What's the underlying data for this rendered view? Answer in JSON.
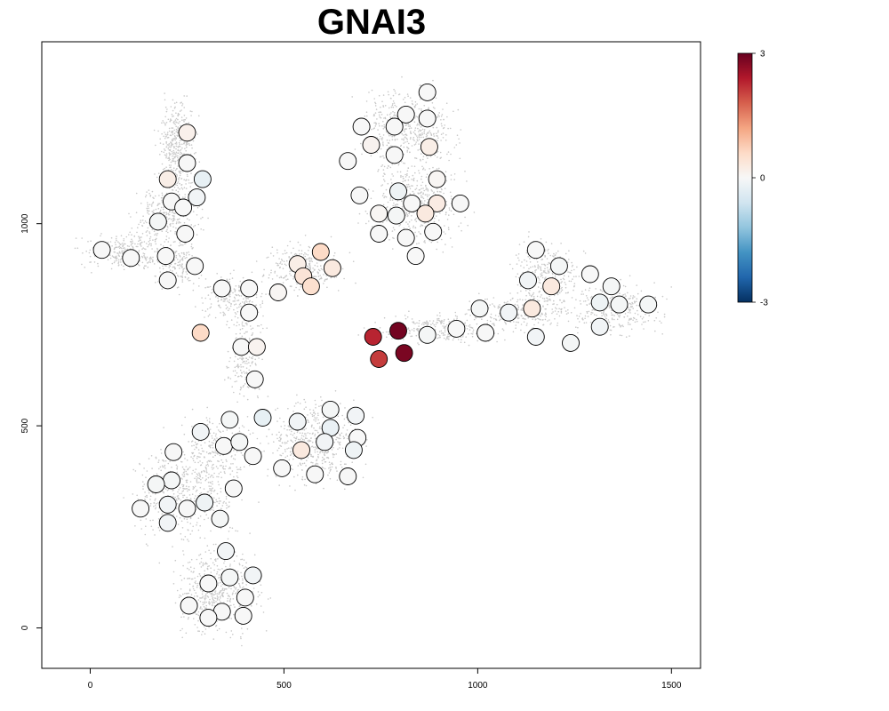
{
  "chart_data": {
    "type": "scatter",
    "title": "GNAI3",
    "xlabel": "",
    "ylabel": "",
    "xlim": [
      -125,
      1575
    ],
    "ylim": [
      -100,
      1450
    ],
    "x_ticks": [
      0,
      500,
      1000,
      1500
    ],
    "y_ticks": [
      0,
      500,
      1000
    ],
    "grid": false,
    "legend": "colorbar, top-right",
    "colorbar": {
      "min": -3,
      "max": 3,
      "ticks": [
        3,
        0,
        -3
      ],
      "colors": [
        "#053061",
        "#2166ac",
        "#4393c3",
        "#92c5de",
        "#d1e5f0",
        "#f7f7f7",
        "#fddbc7",
        "#f4a582",
        "#d6604d",
        "#b2182b",
        "#67001f"
      ]
    },
    "background_clusters": [
      {
        "cx": 225,
        "cy": 1180,
        "rx": 45,
        "ry": 110,
        "n": 420
      },
      {
        "cx": 200,
        "cy": 1020,
        "rx": 80,
        "ry": 70,
        "n": 300
      },
      {
        "cx": 100,
        "cy": 930,
        "rx": 110,
        "ry": 40,
        "n": 280
      },
      {
        "cx": 220,
        "cy": 900,
        "rx": 60,
        "ry": 60,
        "n": 180
      },
      {
        "cx": 370,
        "cy": 820,
        "rx": 90,
        "ry": 55,
        "n": 200
      },
      {
        "cx": 400,
        "cy": 680,
        "rx": 45,
        "ry": 110,
        "n": 220
      },
      {
        "cx": 550,
        "cy": 890,
        "rx": 90,
        "ry": 60,
        "n": 280
      },
      {
        "cx": 820,
        "cy": 1240,
        "rx": 110,
        "ry": 90,
        "n": 500
      },
      {
        "cx": 840,
        "cy": 1050,
        "rx": 110,
        "ry": 100,
        "n": 500
      },
      {
        "cx": 580,
        "cy": 460,
        "rx": 110,
        "ry": 100,
        "n": 520
      },
      {
        "cx": 250,
        "cy": 340,
        "rx": 130,
        "ry": 110,
        "n": 560
      },
      {
        "cx": 330,
        "cy": 90,
        "rx": 100,
        "ry": 100,
        "n": 520
      },
      {
        "cx": 900,
        "cy": 740,
        "rx": 150,
        "ry": 35,
        "n": 260
      },
      {
        "cx": 1110,
        "cy": 780,
        "rx": 120,
        "ry": 40,
        "n": 240
      },
      {
        "cx": 1180,
        "cy": 870,
        "rx": 80,
        "ry": 80,
        "n": 300
      },
      {
        "cx": 1360,
        "cy": 790,
        "rx": 110,
        "ry": 60,
        "n": 320
      },
      {
        "cx": 330,
        "cy": 450,
        "rx": 80,
        "ry": 80,
        "n": 200
      }
    ],
    "points": [
      {
        "x": 250,
        "y": 1225,
        "v": 0.15
      },
      {
        "x": 250,
        "y": 1150,
        "v": 0
      },
      {
        "x": 200,
        "y": 1110,
        "v": 0.2
      },
      {
        "x": 290,
        "y": 1110,
        "v": -0.25
      },
      {
        "x": 210,
        "y": 1055,
        "v": 0
      },
      {
        "x": 240,
        "y": 1040,
        "v": 0
      },
      {
        "x": 275,
        "y": 1065,
        "v": -0.1
      },
      {
        "x": 175,
        "y": 1005,
        "v": -0.05
      },
      {
        "x": 245,
        "y": 975,
        "v": 0
      },
      {
        "x": 30,
        "y": 935,
        "v": 0
      },
      {
        "x": 105,
        "y": 915,
        "v": 0
      },
      {
        "x": 195,
        "y": 920,
        "v": 0
      },
      {
        "x": 270,
        "y": 895,
        "v": 0
      },
      {
        "x": 200,
        "y": 860,
        "v": 0
      },
      {
        "x": 340,
        "y": 840,
        "v": 0
      },
      {
        "x": 410,
        "y": 840,
        "v": 0
      },
      {
        "x": 485,
        "y": 830,
        "v": 0.05
      },
      {
        "x": 410,
        "y": 780,
        "v": 0
      },
      {
        "x": 285,
        "y": 730,
        "v": 0.6
      },
      {
        "x": 390,
        "y": 695,
        "v": 0
      },
      {
        "x": 430,
        "y": 695,
        "v": 0.1
      },
      {
        "x": 425,
        "y": 615,
        "v": 0
      },
      {
        "x": 595,
        "y": 930,
        "v": 0.6
      },
      {
        "x": 535,
        "y": 900,
        "v": 0.2
      },
      {
        "x": 550,
        "y": 870,
        "v": 0.4
      },
      {
        "x": 625,
        "y": 890,
        "v": 0.3
      },
      {
        "x": 570,
        "y": 845,
        "v": 0.5
      },
      {
        "x": 870,
        "y": 1325,
        "v": 0
      },
      {
        "x": 815,
        "y": 1270,
        "v": 0
      },
      {
        "x": 870,
        "y": 1260,
        "v": 0
      },
      {
        "x": 700,
        "y": 1240,
        "v": 0
      },
      {
        "x": 785,
        "y": 1240,
        "v": 0
      },
      {
        "x": 725,
        "y": 1195,
        "v": 0.1
      },
      {
        "x": 875,
        "y": 1190,
        "v": 0.2
      },
      {
        "x": 785,
        "y": 1170,
        "v": 0
      },
      {
        "x": 665,
        "y": 1155,
        "v": 0
      },
      {
        "x": 895,
        "y": 1110,
        "v": 0.05
      },
      {
        "x": 795,
        "y": 1080,
        "v": -0.15
      },
      {
        "x": 695,
        "y": 1070,
        "v": 0
      },
      {
        "x": 830,
        "y": 1050,
        "v": 0
      },
      {
        "x": 895,
        "y": 1050,
        "v": 0.25
      },
      {
        "x": 955,
        "y": 1050,
        "v": 0
      },
      {
        "x": 745,
        "y": 1025,
        "v": 0.05
      },
      {
        "x": 790,
        "y": 1020,
        "v": -0.05
      },
      {
        "x": 865,
        "y": 1025,
        "v": 0.3
      },
      {
        "x": 745,
        "y": 975,
        "v": 0
      },
      {
        "x": 815,
        "y": 965,
        "v": 0
      },
      {
        "x": 885,
        "y": 980,
        "v": 0
      },
      {
        "x": 840,
        "y": 920,
        "v": 0
      },
      {
        "x": 730,
        "y": 720,
        "v": 2.3
      },
      {
        "x": 795,
        "y": 735,
        "v": 2.9
      },
      {
        "x": 745,
        "y": 665,
        "v": 2.1
      },
      {
        "x": 810,
        "y": 680,
        "v": 2.85
      },
      {
        "x": 870,
        "y": 725,
        "v": -0.05
      },
      {
        "x": 945,
        "y": 740,
        "v": 0
      },
      {
        "x": 1005,
        "y": 790,
        "v": -0.05
      },
      {
        "x": 1020,
        "y": 730,
        "v": 0
      },
      {
        "x": 1080,
        "y": 780,
        "v": -0.1
      },
      {
        "x": 1140,
        "y": 790,
        "v": 0.3
      },
      {
        "x": 1150,
        "y": 935,
        "v": 0
      },
      {
        "x": 1210,
        "y": 895,
        "v": -0.05
      },
      {
        "x": 1130,
        "y": 860,
        "v": -0.1
      },
      {
        "x": 1190,
        "y": 845,
        "v": 0.3
      },
      {
        "x": 1150,
        "y": 720,
        "v": -0.1
      },
      {
        "x": 1240,
        "y": 705,
        "v": -0.05
      },
      {
        "x": 1290,
        "y": 875,
        "v": 0
      },
      {
        "x": 1345,
        "y": 845,
        "v": -0.05
      },
      {
        "x": 1315,
        "y": 805,
        "v": -0.15
      },
      {
        "x": 1365,
        "y": 800,
        "v": -0.05
      },
      {
        "x": 1440,
        "y": 800,
        "v": -0.05
      },
      {
        "x": 1315,
        "y": 745,
        "v": -0.1
      },
      {
        "x": 620,
        "y": 540,
        "v": -0.05
      },
      {
        "x": 685,
        "y": 525,
        "v": -0.1
      },
      {
        "x": 535,
        "y": 510,
        "v": -0.1
      },
      {
        "x": 620,
        "y": 495,
        "v": -0.2
      },
      {
        "x": 605,
        "y": 460,
        "v": -0.1
      },
      {
        "x": 690,
        "y": 470,
        "v": 0
      },
      {
        "x": 545,
        "y": 440,
        "v": 0.3
      },
      {
        "x": 680,
        "y": 440,
        "v": -0.15
      },
      {
        "x": 495,
        "y": 395,
        "v": 0
      },
      {
        "x": 580,
        "y": 380,
        "v": 0
      },
      {
        "x": 665,
        "y": 375,
        "v": 0
      },
      {
        "x": 445,
        "y": 520,
        "v": -0.25
      },
      {
        "x": 360,
        "y": 515,
        "v": -0.05
      },
      {
        "x": 285,
        "y": 485,
        "v": -0.1
      },
      {
        "x": 345,
        "y": 450,
        "v": 0
      },
      {
        "x": 385,
        "y": 460,
        "v": -0.05
      },
      {
        "x": 215,
        "y": 435,
        "v": 0
      },
      {
        "x": 420,
        "y": 425,
        "v": 0
      },
      {
        "x": 210,
        "y": 365,
        "v": -0.05
      },
      {
        "x": 170,
        "y": 355,
        "v": -0.05
      },
      {
        "x": 370,
        "y": 345,
        "v": 0
      },
      {
        "x": 130,
        "y": 295,
        "v": 0
      },
      {
        "x": 200,
        "y": 305,
        "v": -0.1
      },
      {
        "x": 250,
        "y": 295,
        "v": 0
      },
      {
        "x": 295,
        "y": 310,
        "v": -0.15
      },
      {
        "x": 200,
        "y": 260,
        "v": -0.1
      },
      {
        "x": 335,
        "y": 270,
        "v": -0.05
      },
      {
        "x": 350,
        "y": 190,
        "v": -0.1
      },
      {
        "x": 420,
        "y": 130,
        "v": -0.1
      },
      {
        "x": 360,
        "y": 125,
        "v": -0.05
      },
      {
        "x": 305,
        "y": 110,
        "v": 0
      },
      {
        "x": 400,
        "y": 75,
        "v": 0
      },
      {
        "x": 255,
        "y": 55,
        "v": 0
      },
      {
        "x": 340,
        "y": 40,
        "v": 0
      },
      {
        "x": 305,
        "y": 25,
        "v": 0
      },
      {
        "x": 395,
        "y": 30,
        "v": 0
      }
    ]
  }
}
